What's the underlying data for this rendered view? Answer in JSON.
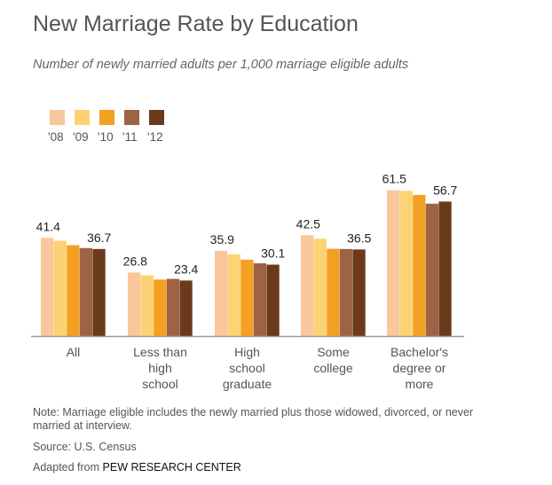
{
  "title": "New Marriage Rate by Education",
  "subtitle": "Number of newly married adults per 1,000 marriage eligible adults",
  "note": "Note: Marriage eligible includes the newly married plus those widowed, divorced, or never married at interview.",
  "source": "Source: U.S. Census",
  "adapted_prefix": "Adapted from ",
  "adapted_brand": "PEW RESEARCH CENTER",
  "chart_data": {
    "type": "bar",
    "title": "New Marriage Rate by Education",
    "subtitle": "Number of newly married adults per 1,000 marriage eligible adults",
    "categories": [
      [
        "All"
      ],
      [
        "Less than",
        "high",
        "school"
      ],
      [
        "High",
        "school",
        "graduate"
      ],
      [
        "Some",
        "college"
      ],
      [
        "Bachelor's",
        "degree or",
        "more"
      ]
    ],
    "series": [
      {
        "name": "'08",
        "color": "#f9c79b",
        "values": [
          41.4,
          26.8,
          35.9,
          42.5,
          61.5
        ]
      },
      {
        "name": "'09",
        "color": "#fbd374",
        "values": [
          40.2,
          25.6,
          34.5,
          41.0,
          61.2
        ]
      },
      {
        "name": "'10",
        "color": "#f4a022",
        "values": [
          38.3,
          23.8,
          32.2,
          36.8,
          59.5
        ]
      },
      {
        "name": "'11",
        "color": "#9e6245",
        "values": [
          37.1,
          24.1,
          30.7,
          36.7,
          55.8
        ]
      },
      {
        "name": "'12",
        "color": "#6b3a1b",
        "values": [
          36.7,
          23.4,
          30.1,
          36.5,
          56.7
        ]
      }
    ],
    "data_labels": [
      {
        "category": 0,
        "left": "41.4",
        "right": "36.7"
      },
      {
        "category": 1,
        "left": "26.8",
        "right": "23.4"
      },
      {
        "category": 2,
        "left": "35.9",
        "right": "30.1"
      },
      {
        "category": 3,
        "left": "42.5",
        "right": "36.5"
      },
      {
        "category": 4,
        "left": "61.5",
        "right": "56.7"
      }
    ],
    "ylim": [
      0,
      70
    ],
    "grid": false,
    "legend_position": "top-left"
  }
}
